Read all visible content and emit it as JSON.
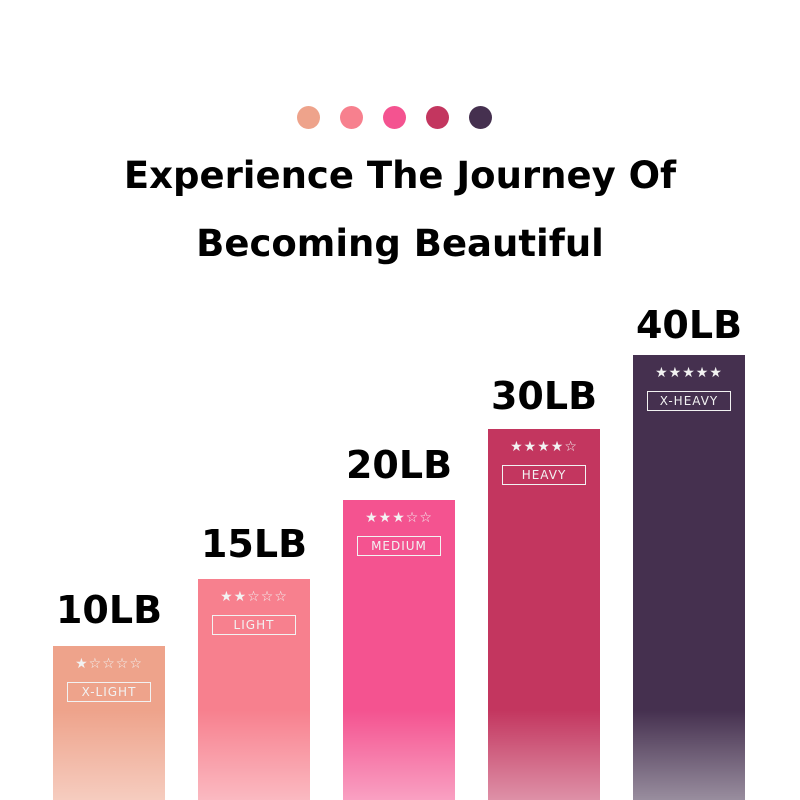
{
  "dots": [
    "#EEA38B",
    "#F7808E",
    "#F45390",
    "#C3365F",
    "#45304F"
  ],
  "title": {
    "line1": "Experience The Journey Of",
    "line2": "Becoming Beautiful"
  },
  "bands": [
    {
      "weight": "10LB",
      "stars": "★☆☆☆☆",
      "rating": 1,
      "level": "X-LIGHT",
      "color": "#EEA38B"
    },
    {
      "weight": "15LB",
      "stars": "★★☆☆☆",
      "rating": 2,
      "level": "LIGHT",
      "color": "#F7808E"
    },
    {
      "weight": "20LB",
      "stars": "★★★☆☆",
      "rating": 3,
      "level": "MEDIUM",
      "color": "#F45390"
    },
    {
      "weight": "30LB",
      "stars": "★★★★☆",
      "rating": 4,
      "level": "HEAVY",
      "color": "#C3365F"
    },
    {
      "weight": "40LB",
      "stars": "★★★★★",
      "rating": 5,
      "level": "X-HEAVY",
      "color": "#45304F"
    }
  ]
}
